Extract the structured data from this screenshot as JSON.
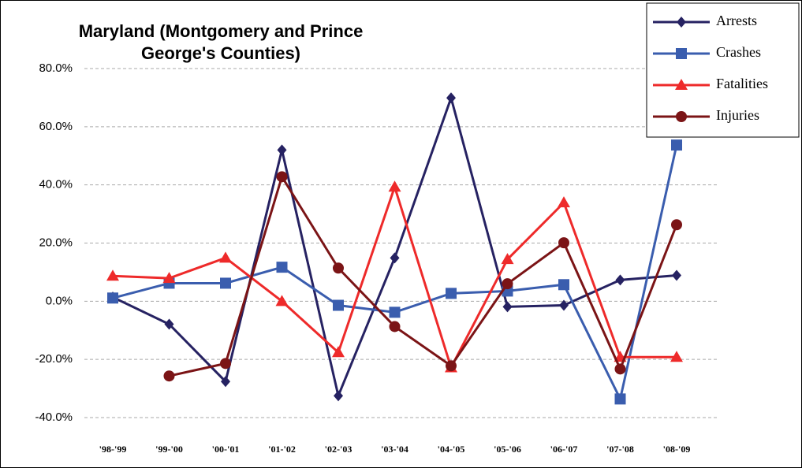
{
  "chart_data": {
    "type": "line",
    "title": "Maryland (Montgomery and Prince George's Counties)",
    "categories": [
      "'98-'99",
      "'99-'00",
      "'00-'01",
      "'01-'02",
      "'02-'03",
      "'03-'04",
      "'04-'05",
      "'05-'06",
      "'06-'07",
      "'07-'08",
      "'08-'09"
    ],
    "series": [
      {
        "name": "Arrests",
        "color": "#262262",
        "marker": "diamond",
        "values": [
          1.4,
          -7.9,
          -27.6,
          52.0,
          -32.5,
          14.9,
          69.9,
          -1.9,
          -1.4,
          7.3,
          8.9
        ]
      },
      {
        "name": "Crashes",
        "color": "#3a5dae",
        "marker": "square",
        "values": [
          1.1,
          6.2,
          6.2,
          11.7,
          -1.4,
          -3.8,
          2.7,
          3.5,
          5.7,
          -33.6,
          53.7
        ]
      },
      {
        "name": "Fatalities",
        "color": "#ee2a2a",
        "marker": "triangle",
        "values": [
          8.7,
          7.9,
          14.9,
          0.0,
          -17.6,
          39.3,
          -22.8,
          14.4,
          33.9,
          -19.2,
          -19.2
        ]
      },
      {
        "name": "Injuries",
        "color": "#7b1416",
        "marker": "circle",
        "values": [
          null,
          -25.7,
          -21.4,
          42.8,
          11.4,
          -8.7,
          -22.2,
          6.0,
          20.1,
          -23.3,
          26.3
        ]
      }
    ],
    "ylim": [
      -40,
      80
    ],
    "yticks": [
      {
        "value": -40,
        "label": "-40.0%"
      },
      {
        "value": -20,
        "label": "-20.0%"
      },
      {
        "value": 0,
        "label": "0.0%"
      },
      {
        "value": 20,
        "label": "20.0%"
      },
      {
        "value": 40,
        "label": "40.0%"
      },
      {
        "value": 60,
        "label": "60.0%"
      },
      {
        "value": 80,
        "label": "80.0%"
      }
    ],
    "grid": true,
    "legend": "top-right"
  }
}
